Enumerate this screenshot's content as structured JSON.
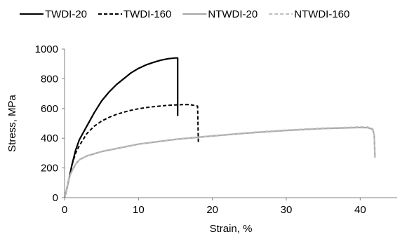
{
  "chart_data": {
    "type": "line",
    "title": "",
    "xlabel": "Strain, %",
    "ylabel": "Stress, MPa",
    "xlim": [
      0,
      45
    ],
    "ylim": [
      0,
      1000
    ],
    "x_ticks": [
      0,
      10,
      20,
      30,
      40
    ],
    "y_ticks": [
      0,
      200,
      400,
      600,
      800,
      1000
    ],
    "x_tick_labels": [
      "0",
      "10",
      "20",
      "30",
      "40"
    ],
    "y_tick_labels": [
      "0",
      "200",
      "400",
      "600",
      "800",
      "1000"
    ],
    "grid": false,
    "legend_position": "top",
    "series": [
      {
        "name": "TWDI-20",
        "color": "#000000",
        "dash": "solid",
        "points": [
          [
            0,
            0
          ],
          [
            0.3,
            60
          ],
          [
            0.7,
            150
          ],
          [
            1,
            220
          ],
          [
            1.5,
            320
          ],
          [
            2,
            390
          ],
          [
            3,
            480
          ],
          [
            4,
            570
          ],
          [
            5,
            650
          ],
          [
            6,
            710
          ],
          [
            7,
            760
          ],
          [
            8,
            800
          ],
          [
            9,
            840
          ],
          [
            10,
            870
          ],
          [
            11,
            893
          ],
          [
            12,
            910
          ],
          [
            13,
            925
          ],
          [
            14,
            935
          ],
          [
            15,
            940
          ],
          [
            15.3,
            940
          ],
          [
            15.3,
            550
          ]
        ]
      },
      {
        "name": "TWDI-160",
        "color": "#000000",
        "dash": "dashed",
        "points": [
          [
            0,
            0
          ],
          [
            0.3,
            60
          ],
          [
            0.7,
            150
          ],
          [
            1,
            220
          ],
          [
            1.5,
            300
          ],
          [
            2,
            350
          ],
          [
            3,
            430
          ],
          [
            4,
            480
          ],
          [
            5,
            515
          ],
          [
            6,
            540
          ],
          [
            7,
            560
          ],
          [
            8,
            575
          ],
          [
            9,
            588
          ],
          [
            10,
            598
          ],
          [
            11,
            606
          ],
          [
            12,
            612
          ],
          [
            13,
            617
          ],
          [
            14,
            621
          ],
          [
            15,
            624
          ],
          [
            16,
            626
          ],
          [
            17,
            626
          ],
          [
            18,
            616
          ],
          [
            18.1,
            370
          ]
        ]
      },
      {
        "name": "NTWDI-20",
        "color": "#a6a6a6",
        "dash": "solid",
        "points": [
          [
            0,
            0
          ],
          [
            0.3,
            60
          ],
          [
            0.6,
            130
          ],
          [
            1,
            180
          ],
          [
            1.5,
            225
          ],
          [
            2,
            255
          ],
          [
            3,
            280
          ],
          [
            5,
            310
          ],
          [
            8,
            340
          ],
          [
            10,
            360
          ],
          [
            15,
            392
          ],
          [
            20,
            415
          ],
          [
            25,
            436
          ],
          [
            30,
            452
          ],
          [
            35,
            465
          ],
          [
            40,
            472
          ],
          [
            41,
            471
          ],
          [
            41.7,
            460
          ],
          [
            41.9,
            420
          ],
          [
            42,
            270
          ]
        ]
      },
      {
        "name": "NTWDI-160",
        "color": "#bfbfbf",
        "dash": "dashed",
        "points": [
          [
            0,
            0
          ],
          [
            0.3,
            60
          ],
          [
            0.6,
            130
          ],
          [
            1,
            180
          ],
          [
            1.5,
            225
          ],
          [
            2,
            255
          ],
          [
            3,
            282
          ],
          [
            5,
            312
          ],
          [
            8,
            342
          ],
          [
            10,
            362
          ],
          [
            15,
            394
          ],
          [
            20,
            417
          ],
          [
            25,
            438
          ],
          [
            30,
            455
          ],
          [
            35,
            468
          ],
          [
            40,
            476
          ],
          [
            41,
            475
          ],
          [
            41.7,
            465
          ],
          [
            41.9,
            425
          ],
          [
            42,
            275
          ]
        ]
      }
    ]
  }
}
